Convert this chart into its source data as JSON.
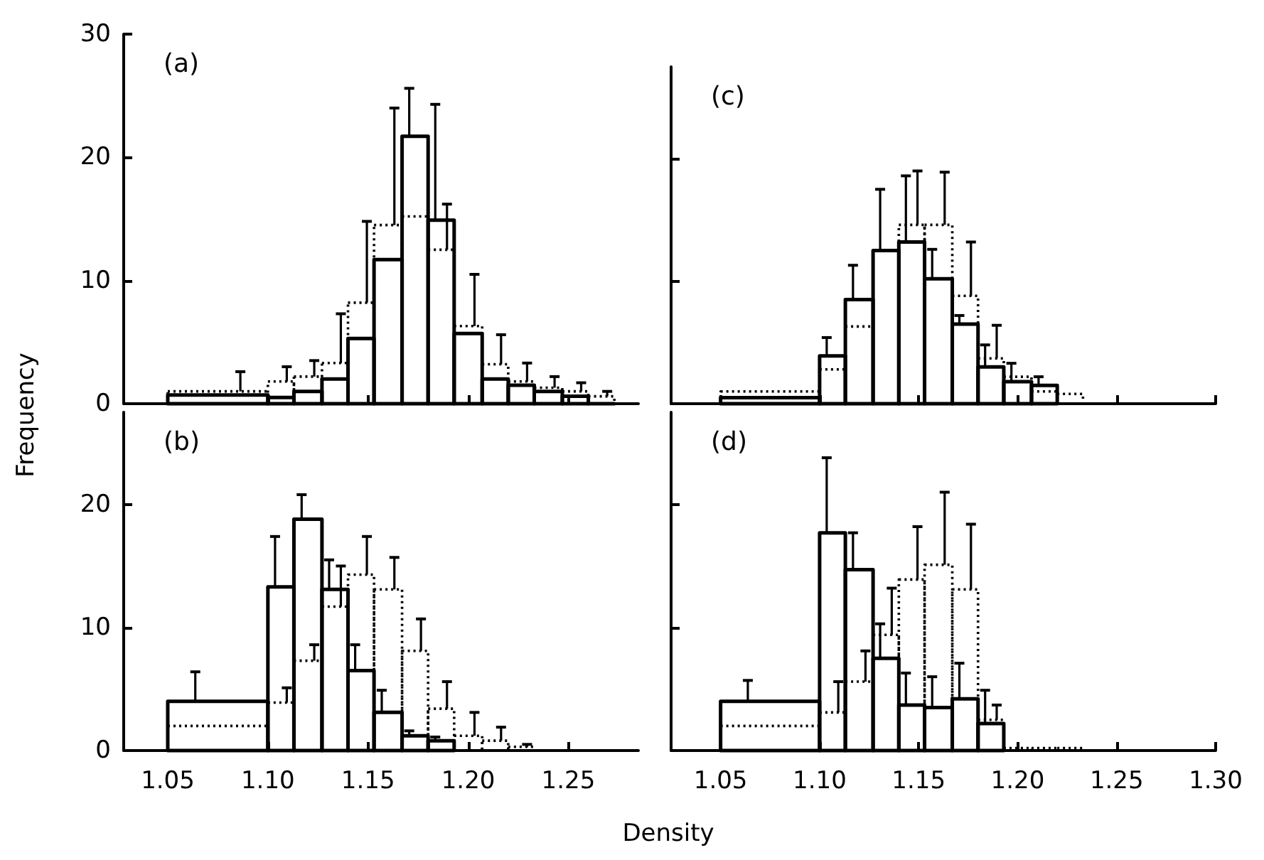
{
  "chart_data": [
    {
      "type": "histogram",
      "annotations": [
        "(a)"
      ],
      "ylabel": "Frequency",
      "bins": [
        1.05,
        1.1,
        1.113,
        1.127,
        1.14,
        1.153,
        1.167,
        1.18,
        1.193,
        1.207,
        1.22,
        1.233,
        1.247,
        1.26,
        1.273
      ],
      "xlim": [
        1.028,
        1.285
      ],
      "xticks": [
        1.05,
        1.1,
        1.15,
        1.2,
        1.25
      ],
      "ylim": [
        0,
        30
      ],
      "yticks": [
        0,
        10,
        20,
        30
      ],
      "tick_labels": "y",
      "series": [
        {
          "color": "#000000",
          "line_style": "solid",
          "values": [
            0.7,
            0.5,
            1,
            2,
            5.3,
            11.7,
            21.7,
            14.9,
            5.7,
            2,
            1.5,
            1,
            0.6,
            0
          ],
          "errors": [
            null,
            null,
            null,
            null,
            null,
            null,
            [
              21.7,
              25.6
            ],
            [
              14.9,
              24.3
            ],
            null,
            null,
            null,
            null,
            null,
            null
          ]
        },
        {
          "color": "#000000",
          "line_style": "dotted",
          "values": [
            1,
            1.8,
            2.2,
            3.3,
            8.2,
            14.5,
            15.2,
            12.5,
            6.3,
            3.2,
            1.8,
            1.3,
            1,
            0.6
          ],
          "errors": [
            [
              1,
              2.6
            ],
            [
              1.8,
              3
            ],
            [
              2.2,
              3.5
            ],
            [
              3.3,
              7.3
            ],
            [
              8.2,
              14.8
            ],
            [
              14.5,
              24
            ],
            null,
            [
              12.5,
              16.2
            ],
            [
              6.3,
              10.5
            ],
            [
              3.2,
              5.6
            ],
            [
              1.8,
              3.3
            ],
            [
              1.3,
              2.2
            ],
            [
              1,
              1.7
            ],
            [
              0.6,
              1
            ]
          ]
        }
      ]
    },
    {
      "type": "histogram",
      "annotations": [
        "(b)"
      ],
      "xlabel": "Density",
      "bins": [
        1.05,
        1.1,
        1.113,
        1.127,
        1.14,
        1.153,
        1.167,
        1.18,
        1.193,
        1.207,
        1.22,
        1.233
      ],
      "xlim": [
        1.028,
        1.285
      ],
      "xticks": [
        {
          "value": 1.05,
          "label": "1.05"
        },
        {
          "value": 1.1,
          "label": "1.10"
        },
        {
          "value": 1.15,
          "label": "1.15"
        },
        {
          "value": 1.2,
          "label": "1.20"
        },
        {
          "value": 1.25,
          "label": "1.25"
        }
      ],
      "ylim": [
        0,
        27.5
      ],
      "yticks": [
        0,
        10,
        20
      ],
      "series": [
        {
          "color": "#000000",
          "line_style": "solid",
          "values": [
            4,
            13.3,
            18.8,
            13.1,
            6.5,
            3.1,
            1.2,
            0.8,
            null,
            null,
            null
          ],
          "errors": [
            [
              4,
              6.4
            ],
            [
              13.3,
              17.4
            ],
            [
              18.8,
              20.8
            ],
            [
              13.1,
              15.5
            ],
            [
              6.5,
              8.6
            ],
            [
              3.1,
              4.9
            ],
            [
              1.2,
              1.6
            ],
            [
              0.8,
              1.1
            ],
            null,
            null,
            null
          ]
        },
        {
          "color": "#000000",
          "line_style": "dotted",
          "values": [
            2,
            3.9,
            7.3,
            11.7,
            14.3,
            13.1,
            8.1,
            3.4,
            1.2,
            0.8,
            0.3
          ],
          "errors": [
            null,
            [
              3.9,
              5.1
            ],
            [
              7.3,
              8.6
            ],
            [
              11.7,
              15
            ],
            [
              14.3,
              17.4
            ],
            [
              13.1,
              15.7
            ],
            [
              8.1,
              10.7
            ],
            [
              3.4,
              5.6
            ],
            [
              1.2,
              3.1
            ],
            [
              0.8,
              1.9
            ],
            [
              0.3,
              0.5
            ]
          ]
        }
      ]
    },
    {
      "type": "histogram",
      "annotations": [
        "(c)"
      ],
      "bins": [
        1.05,
        1.1,
        1.113,
        1.127,
        1.14,
        1.153,
        1.167,
        1.18,
        1.193,
        1.207,
        1.22,
        1.233
      ],
      "xlim": [
        1.025,
        1.3
      ],
      "xticks": [
        1.05,
        1.1,
        1.15,
        1.2,
        1.25,
        1.3
      ],
      "ylim": [
        0,
        27.5
      ],
      "yticks": [
        0,
        10,
        20
      ],
      "tick_labels": false,
      "series": [
        {
          "color": "#000000",
          "line_style": "solid",
          "values": [
            0.5,
            3.9,
            8.5,
            12.5,
            13.2,
            10.2,
            6.5,
            3,
            1.8,
            1.5,
            null
          ],
          "errors": [
            null,
            [
              3.9,
              5.4
            ],
            [
              8.5,
              11.3
            ],
            [
              12.5,
              17.5
            ],
            [
              13.2,
              18.6
            ],
            [
              10.2,
              12.6
            ],
            [
              6.5,
              7.2
            ],
            [
              3,
              4.8
            ],
            [
              1.8,
              3.3
            ],
            [
              1.5,
              2.2
            ],
            null
          ]
        },
        {
          "color": "#000000",
          "line_style": "dotted",
          "values": [
            1,
            2.8,
            6.3,
            null,
            14.6,
            14.6,
            8.8,
            3.7,
            2.2,
            1,
            0.8
          ],
          "errors": [
            null,
            null,
            null,
            null,
            [
              14.6,
              19
            ],
            [
              14.6,
              18.9
            ],
            [
              8.8,
              13.2
            ],
            [
              3.7,
              6.4
            ],
            null,
            null,
            null
          ]
        }
      ]
    },
    {
      "type": "histogram",
      "annotations": [
        "(d)"
      ],
      "bins": [
        1.05,
        1.1,
        1.113,
        1.127,
        1.14,
        1.153,
        1.167,
        1.18,
        1.193,
        1.207,
        1.22,
        1.233
      ],
      "xlim": [
        1.025,
        1.3
      ],
      "xticks": [
        {
          "value": 1.05,
          "label": "1.05"
        },
        {
          "value": 1.1,
          "label": "1.10"
        },
        {
          "value": 1.15,
          "label": "1.15"
        },
        {
          "value": 1.2,
          "label": "1.20"
        },
        {
          "value": 1.25,
          "label": "1.25"
        },
        {
          "value": 1.3,
          "label": "1.30"
        }
      ],
      "ylim": [
        0,
        27.5
      ],
      "yticks": [
        0,
        10,
        20
      ],
      "tick_labels": "x",
      "series": [
        {
          "color": "#000000",
          "line_style": "solid",
          "values": [
            4,
            17.7,
            14.7,
            7.5,
            3.7,
            3.5,
            4.2,
            2.2,
            null,
            null,
            null
          ],
          "errors": [
            [
              4,
              5.7
            ],
            [
              17.7,
              23.8
            ],
            [
              14.7,
              17.7
            ],
            [
              7.5,
              10.3
            ],
            [
              3.7,
              6.3
            ],
            [
              3.5,
              6
            ],
            [
              4.2,
              7.1
            ],
            [
              2.2,
              4.9
            ],
            null,
            null,
            null
          ]
        },
        {
          "color": "#000000",
          "line_style": "dotted",
          "values": [
            2,
            3.1,
            5.6,
            9.4,
            13.9,
            15.1,
            13.1,
            2.5,
            0.2,
            0.2,
            0.2
          ],
          "errors": [
            null,
            [
              3.1,
              5.6
            ],
            [
              5.6,
              8.1
            ],
            [
              9.4,
              13.2
            ],
            [
              13.9,
              18.2
            ],
            [
              15.1,
              21
            ],
            [
              13.1,
              18.4
            ],
            [
              2.5,
              3.7
            ],
            null,
            null,
            null
          ]
        }
      ]
    }
  ]
}
